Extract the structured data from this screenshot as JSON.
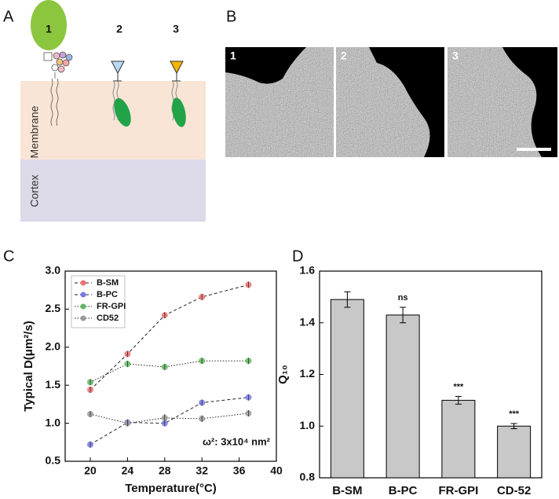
{
  "panels": {
    "a": {
      "label": "A",
      "items": [
        "1",
        "2",
        "3"
      ],
      "regions": [
        "Membrane",
        "Cortex"
      ]
    },
    "b": {
      "label": "B",
      "images": [
        "1",
        "2",
        "3"
      ]
    },
    "c": {
      "label": "C"
    },
    "d": {
      "label": "D"
    }
  },
  "chart_data": [
    {
      "type": "line",
      "xlabel": "Temperature(°C)",
      "ylabel": "Typical D(μm²/s)",
      "annotation": "ω²: 3x10⁴ nm²",
      "x": [
        20,
        24,
        28,
        32,
        37
      ],
      "xlim": [
        17.3,
        40
      ],
      "xticks": [
        20,
        24,
        28,
        32,
        36,
        40
      ],
      "ylim": [
        0.5,
        3.0
      ],
      "yticks": [
        {
          "value": 0.5,
          "label": "0.5"
        },
        {
          "value": 1.0,
          "label": "1.0"
        },
        {
          "value": 1.5,
          "label": "1.5"
        },
        {
          "value": 2.0,
          "label": "2.0"
        },
        {
          "value": 2.5,
          "label": "2.5"
        },
        {
          "value": 3.0,
          "label": "3.0"
        }
      ],
      "series": [
        {
          "name": "B-SM",
          "color": "#f07070",
          "dash": "dashed",
          "values": [
            1.44,
            1.91,
            2.42,
            2.66,
            2.82
          ],
          "errors": [
            0.03,
            0.03,
            0.03,
            0.03,
            0.04
          ]
        },
        {
          "name": "B-PC",
          "color": "#7878e8",
          "dash": "dashed",
          "values": [
            0.72,
            1.01,
            1.0,
            1.27,
            1.34
          ],
          "errors": [
            0.02,
            0.03,
            0.02,
            0.03,
            0.03
          ]
        },
        {
          "name": "FR-GPI",
          "color": "#60b860",
          "dash": "dotted",
          "values": [
            1.54,
            1.78,
            1.74,
            1.82,
            1.82
          ],
          "errors": [
            0.02,
            0.02,
            0.02,
            0.02,
            0.02
          ]
        },
        {
          "name": "CD52",
          "color": "#999999",
          "dash": "dotted",
          "values": [
            1.12,
            1.0,
            1.07,
            1.06,
            1.13
          ],
          "errors": [
            0.03,
            0.04,
            0.05,
            0.04,
            0.03
          ]
        }
      ]
    },
    {
      "type": "bar",
      "ylabel": "Q₁₀",
      "categories": [
        "B-SM",
        "B-PC",
        "FR-GPI",
        "CD-52"
      ],
      "values": [
        1.49,
        1.43,
        1.1,
        1.0
      ],
      "errors": [
        0.03,
        0.03,
        0.015,
        0.01
      ],
      "significance": [
        null,
        "ns",
        "***",
        "***"
      ],
      "color": "#c8c8c8",
      "ylim": [
        0.8,
        1.6
      ],
      "yticks": [
        {
          "value": 0.8,
          "label": "0.8"
        },
        {
          "value": 1.0,
          "label": "1.0"
        },
        {
          "value": 1.2,
          "label": "1.2"
        },
        {
          "value": 1.4,
          "label": "1.4"
        },
        {
          "value": 1.6,
          "label": "1.6"
        }
      ]
    }
  ]
}
